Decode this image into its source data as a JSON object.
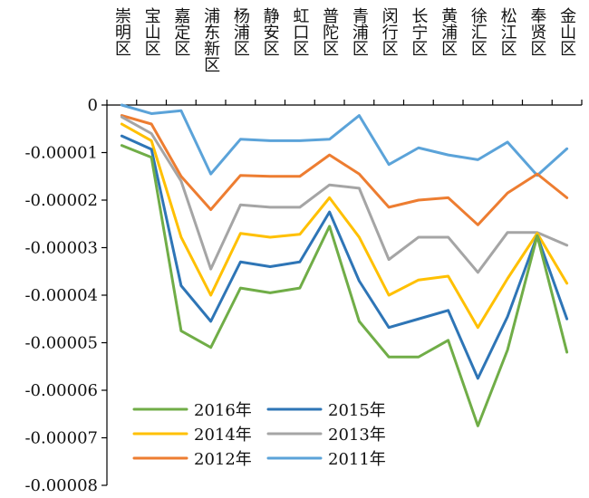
{
  "chart_data": {
    "type": "line",
    "categories": [
      "崇明区",
      "宝山区",
      "嘉定区",
      "浦东新区",
      "杨浦区",
      "静安区",
      "虹口区",
      "普陀区",
      "青浦区",
      "闵行区",
      "长宁区",
      "黄浦区",
      "徐汇区",
      "松江区",
      "奉贤区",
      "金山区"
    ],
    "ylim": [
      -8e-05,
      0
    ],
    "yticks": [
      0,
      -1e-05,
      -2e-05,
      -3e-05,
      -4e-05,
      -5e-05,
      -6e-05,
      -7e-05,
      -8e-05
    ],
    "ytick_labels": [
      "0",
      "-0.00001",
      "-0.00002",
      "-0.00003",
      "-0.00004",
      "-0.00005",
      "-0.00006",
      "-0.00007",
      "-0.00008"
    ],
    "legend_position": "bottom-left (inside plot)",
    "series": [
      {
        "name": "2016年",
        "color": "#70AD47",
        "values": [
          -8.5e-06,
          -1.1e-05,
          -4.75e-05,
          -5.1e-05,
          -3.85e-05,
          -3.95e-05,
          -3.85e-05,
          -2.55e-05,
          -4.55e-05,
          -5.3e-05,
          -5.3e-05,
          -4.95e-05,
          -6.75e-05,
          -5.15e-05,
          -2.75e-05,
          -5.2e-05
        ]
      },
      {
        "name": "2015年",
        "color": "#2E75B6",
        "values": [
          -6.5e-06,
          -9.3e-06,
          -3.8e-05,
          -4.55e-05,
          -3.3e-05,
          -3.4e-05,
          -3.3e-05,
          -2.25e-05,
          -3.7e-05,
          -4.68e-05,
          -4.5e-05,
          -4.32e-05,
          -5.75e-05,
          -4.45e-05,
          -2.75e-05,
          -4.5e-05
        ]
      },
      {
        "name": "2014年",
        "color": "#FFC000",
        "values": [
          -4e-06,
          -7.5e-06,
          -2.78e-05,
          -4e-05,
          -2.7e-05,
          -2.78e-05,
          -2.72e-05,
          -1.95e-05,
          -2.78e-05,
          -4e-05,
          -3.68e-05,
          -3.6e-05,
          -4.68e-05,
          -3.65e-05,
          -2.7e-05,
          -3.75e-05
        ]
      },
      {
        "name": "2013年",
        "color": "#A5A5A5",
        "values": [
          -2.5e-06,
          -6e-06,
          -1.6e-05,
          -3.45e-05,
          -2.1e-05,
          -2.15e-05,
          -2.15e-05,
          -1.68e-05,
          -1.75e-05,
          -3.25e-05,
          -2.78e-05,
          -2.78e-05,
          -3.52e-05,
          -2.68e-05,
          -2.68e-05,
          -2.95e-05
        ]
      },
      {
        "name": "2012年",
        "color": "#ED7D31",
        "values": [
          -2.2e-06,
          -4e-06,
          -1.5e-05,
          -2.2e-05,
          -1.48e-05,
          -1.5e-05,
          -1.5e-05,
          -1.05e-05,
          -1.45e-05,
          -2.15e-05,
          -2e-05,
          -1.95e-05,
          -2.52e-05,
          -1.85e-05,
          -1.45e-05,
          -1.95e-05
        ]
      },
      {
        "name": "2011年",
        "color": "#5BA3D9",
        "values": [
          0,
          -1.8e-06,
          -1.2e-06,
          -1.45e-05,
          -7.2e-06,
          -7.5e-06,
          -7.5e-06,
          -7.2e-06,
          -2.2e-06,
          -1.25e-05,
          -9e-06,
          -1.05e-05,
          -1.15e-05,
          -7.8e-06,
          -1.48e-05,
          -9.2e-06
        ]
      }
    ]
  }
}
